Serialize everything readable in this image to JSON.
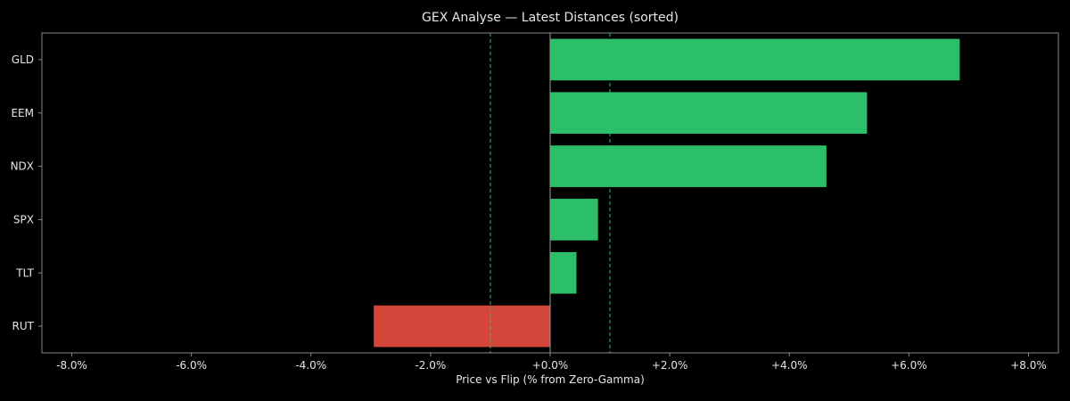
{
  "colors": {
    "background": "#000000",
    "frame": "#888888",
    "text": "#e6e6e6",
    "positive": "#2bbf6a",
    "negative": "#d4453a",
    "zero_line": "#9a9a9a",
    "threshold_line": "#2bbf6a"
  },
  "chart_data": {
    "type": "bar",
    "orientation": "horizontal",
    "title": "GEX Analyse — Latest Distances (sorted)",
    "xlabel": "Price vs Flip (% from Zero-Gamma)",
    "ylabel": "",
    "xlim": [
      -8.5,
      8.5
    ],
    "xticks": [
      -8,
      -6,
      -4,
      -2,
      0,
      2,
      4,
      6,
      8
    ],
    "xtick_labels": [
      "-8.0%",
      "-6.0%",
      "-4.0%",
      "-2.0%",
      "+0.0%",
      "+2.0%",
      "+4.0%",
      "+6.0%",
      "+8.0%"
    ],
    "categories": [
      "GLD",
      "EEM",
      "NDX",
      "SPX",
      "TLT",
      "RUT"
    ],
    "values": [
      6.85,
      5.3,
      4.62,
      0.8,
      0.44,
      -2.95
    ],
    "reference_lines": [
      {
        "x": 0,
        "style": "solid"
      },
      {
        "x": -1,
        "style": "dashed"
      },
      {
        "x": 1,
        "style": "dashed"
      }
    ],
    "grid": false,
    "legend": "none"
  }
}
